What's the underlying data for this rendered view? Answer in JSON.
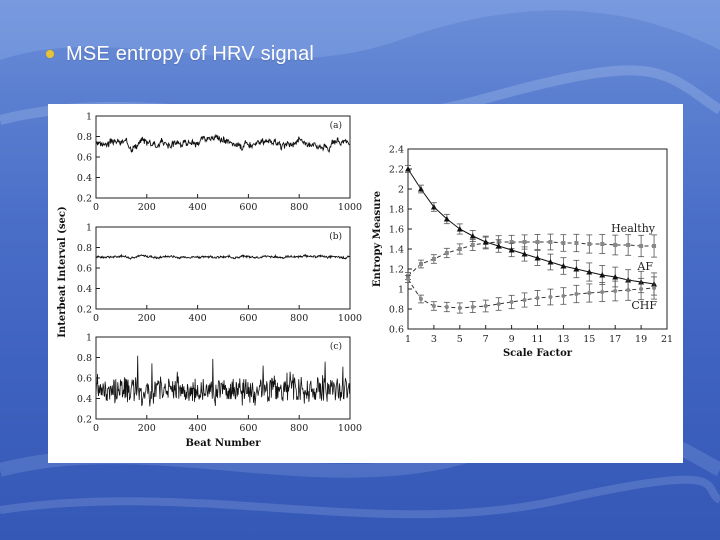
{
  "slide": {
    "title": "MSE entropy of HRV signal",
    "accent_color": "#e5c33a",
    "background_color": "#4a6fc8"
  },
  "chart_data": [
    {
      "type": "line",
      "panel": "(a)",
      "xlim": [
        0,
        1000
      ],
      "ylim": [
        0.2,
        1
      ],
      "x_ticks": [
        "0",
        "200",
        "400",
        "600",
        "800",
        "1000"
      ],
      "y_ticks": [
        "0.2",
        "0.4",
        "0.6",
        "0.8",
        "1"
      ],
      "signal": {
        "mean": 0.74,
        "spread": 0.055,
        "noise": 0.025,
        "seed": 3
      }
    },
    {
      "type": "line",
      "panel": "(b)",
      "xlim": [
        0,
        1000
      ],
      "ylim": [
        0.2,
        1
      ],
      "x_ticks": [
        "0",
        "200",
        "400",
        "600",
        "800",
        "1000"
      ],
      "y_ticks": [
        "0.2",
        "0.4",
        "0.6",
        "0.8",
        "1"
      ],
      "signal": {
        "mean": 0.71,
        "spread": 0.015,
        "noise": 0.008,
        "seed": 7
      }
    },
    {
      "type": "line",
      "panel": "(c)",
      "xlim": [
        0,
        1000
      ],
      "ylim": [
        0.2,
        1
      ],
      "x_ticks": [
        "0",
        "200",
        "400",
        "600",
        "800",
        "1000"
      ],
      "y_ticks": [
        "0.2",
        "0.4",
        "0.6",
        "0.8",
        "1"
      ],
      "xlabel": "Beat Number",
      "signal": {
        "mean": 0.48,
        "spread": 0.05,
        "noise": 0.11,
        "seed": 11
      }
    },
    {
      "type": "line",
      "shared_ylabel": "Interbeat Interval (sec)",
      "xlabel": "Scale Factor",
      "ylabel": "Entropy Measure",
      "xlim": [
        1,
        21
      ],
      "ylim": [
        0.6,
        2.4
      ],
      "x_ticks": [
        "1",
        "3",
        "5",
        "7",
        "9",
        "11",
        "13",
        "15",
        "17",
        "19",
        "21"
      ],
      "y_ticks": [
        "0.6",
        "0.8",
        "1",
        "1.2",
        "1.4",
        "1.6",
        "1.8",
        "2",
        "2.2",
        "2.4"
      ],
      "x": [
        1,
        2,
        3,
        4,
        5,
        6,
        7,
        8,
        9,
        10,
        11,
        12,
        13,
        14,
        15,
        16,
        17,
        18,
        19,
        20
      ],
      "series": [
        {
          "name": "Healthy",
          "marker": "square",
          "values": [
            1.13,
            1.25,
            1.3,
            1.36,
            1.4,
            1.44,
            1.46,
            1.47,
            1.47,
            1.47,
            1.47,
            1.47,
            1.46,
            1.46,
            1.45,
            1.45,
            1.44,
            1.44,
            1.43,
            1.43
          ]
        },
        {
          "name": "AF",
          "marker": "triangle",
          "values": [
            2.2,
            2.0,
            1.82,
            1.7,
            1.6,
            1.53,
            1.47,
            1.43,
            1.39,
            1.35,
            1.31,
            1.27,
            1.23,
            1.2,
            1.17,
            1.14,
            1.12,
            1.09,
            1.07,
            1.05
          ]
        },
        {
          "name": "CHF",
          "marker": "circle",
          "values": [
            1.1,
            0.9,
            0.83,
            0.82,
            0.81,
            0.82,
            0.83,
            0.85,
            0.87,
            0.89,
            0.91,
            0.92,
            0.93,
            0.95,
            0.96,
            0.97,
            0.98,
            0.99,
            1.0,
            1.01
          ]
        }
      ]
    }
  ]
}
